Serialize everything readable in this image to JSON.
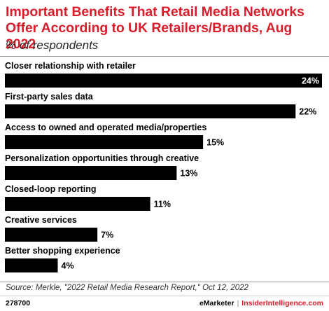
{
  "header": {
    "title": "Important Benefits That Retail Media Networks Offer According to UK Retailers/Brands, Aug 2022",
    "subtitle": "% of respondents"
  },
  "chart_data": {
    "type": "bar",
    "orientation": "horizontal",
    "categories": [
      "Closer relationship with retailer",
      "First-party sales data",
      "Access to owned and operated media/properties",
      "Personalization opportunities through creative",
      "Closed-loop reporting",
      "Creative services",
      "Better shopping experience"
    ],
    "values": [
      24,
      22,
      15,
      13,
      11,
      7,
      4
    ],
    "value_labels": [
      "24%",
      "22%",
      "15%",
      "13%",
      "11%",
      "7%",
      "4%"
    ],
    "bar_color": "#000000",
    "grid": false
  },
  "footer": {
    "source": "Source: Merkle, \"2022 Retail Media Research Report,\" Oct 12, 2022",
    "chart_id": "278700",
    "brand_left": "eMarketer",
    "brand_separator": "|",
    "brand_right": "InsiderIntelligence.com"
  }
}
